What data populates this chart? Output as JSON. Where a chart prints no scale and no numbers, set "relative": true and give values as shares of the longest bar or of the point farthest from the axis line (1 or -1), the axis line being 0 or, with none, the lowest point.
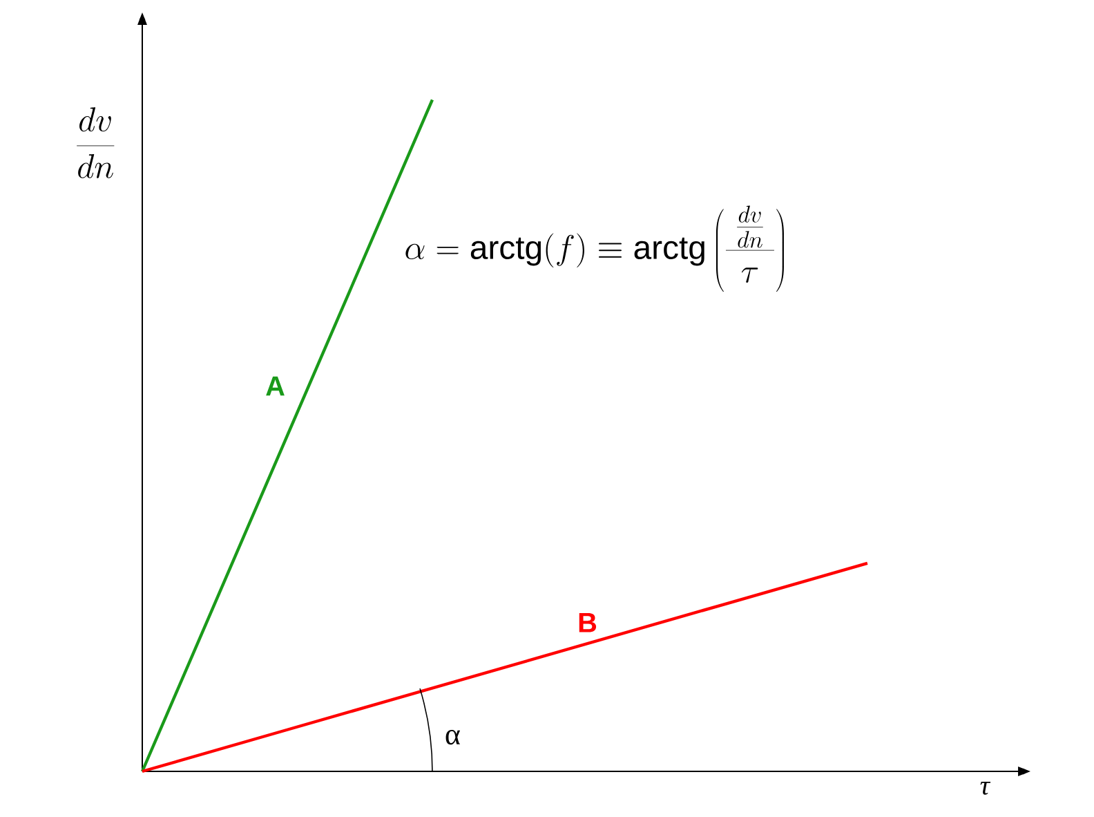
{
  "chart_data": {
    "type": "line",
    "relative": true,
    "xlabel": "τ",
    "ylabel": "\\frac{dv}{dn}",
    "categories": [
      null,
      null,
      null,
      null,
      null,
      null
    ],
    "series": [
      {
        "name": "A",
        "color": "#1a9a1a",
        "values": [
          0,
          0.5,
          1,
          null,
          null,
          null
        ]
      },
      {
        "name": "B",
        "color": "#ff0000",
        "values": [
          0,
          0.062,
          0.124,
          0.186,
          0.248,
          0.31
        ]
      }
    ],
    "annotations": [
      "\\alpha = \\mathrm{arctg}\\bigl(f\\bigr) \\equiv \\mathrm{arctg}\\left(\\frac{\\;\\frac{dv}{dn}\\;}{\\tau}\\right)",
      "α"
    ],
    "marker": "none",
    "line_style": "solid",
    "legend": false
  }
}
